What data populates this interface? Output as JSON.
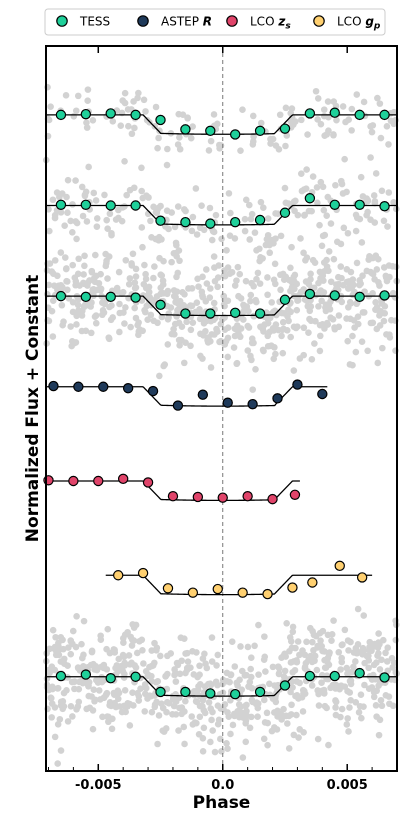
{
  "chart_data": {
    "type": "scatter",
    "title": "",
    "xlabel": "Phase",
    "ylabel": "Normalized Flux + Constant",
    "xlim": [
      -0.0071,
      0.007
    ],
    "ylim": [
      0,
      100
    ],
    "x_ticks": [
      -0.005,
      0.0,
      0.005
    ],
    "x_tick_labels": [
      "-0.005",
      "0.0",
      "0.005"
    ],
    "reference_line_x": 0.0,
    "legend": {
      "placement": "top, above plot",
      "entries": [
        {
          "label": "TESS",
          "color": "#1fd09a"
        },
        {
          "label": "ASTEP",
          "suffix": "R",
          "color": "#1f3a5a"
        },
        {
          "label": "LCO",
          "suffix": "z",
          "sub": "s",
          "color": "#e0446a"
        },
        {
          "label": "LCO",
          "suffix": "g",
          "sub": "p",
          "color": "#ffd070"
        }
      ]
    },
    "background_color": "#d2d2d2",
    "model_color": "#000000",
    "transit_params": {
      "t1": -0.0032,
      "t4": 0.0028,
      "ingress": 0.0007
    },
    "panels": [
      {
        "series": "TESS",
        "color": "#1fd09a",
        "baseline": 90.5,
        "depth": 2.5,
        "xrange": [
          -0.0071,
          0.007
        ],
        "background": {
          "n": 130,
          "scatter": 1.8
        },
        "binned": [
          [
            -0.0065,
            90.5
          ],
          [
            -0.0055,
            90.6
          ],
          [
            -0.0045,
            90.7
          ],
          [
            -0.0035,
            90.5
          ],
          [
            -0.0025,
            89.8
          ],
          [
            -0.0015,
            88.5
          ],
          [
            -0.0005,
            88.3
          ],
          [
            0.0005,
            87.8
          ],
          [
            0.0015,
            88.3
          ],
          [
            0.0025,
            88.6
          ],
          [
            0.0035,
            90.7
          ],
          [
            0.0045,
            90.8
          ],
          [
            0.0055,
            90.5
          ],
          [
            0.0065,
            90.5
          ]
        ]
      },
      {
        "series": "TESS",
        "color": "#1fd09a",
        "baseline": 78.0,
        "depth": 2.5,
        "xrange": [
          -0.0071,
          0.007
        ],
        "background": {
          "n": 200,
          "scatter": 2.3
        },
        "binned": [
          [
            -0.0065,
            78.1
          ],
          [
            -0.0055,
            78.1
          ],
          [
            -0.0045,
            78.0
          ],
          [
            -0.0035,
            78.0
          ],
          [
            -0.0025,
            75.9
          ],
          [
            -0.0015,
            75.7
          ],
          [
            -0.0005,
            75.5
          ],
          [
            0.0005,
            75.7
          ],
          [
            0.0015,
            76.0
          ],
          [
            0.0025,
            77.0
          ],
          [
            0.0035,
            79.0
          ],
          [
            0.0045,
            78.1
          ],
          [
            0.0055,
            78.1
          ],
          [
            0.0065,
            77.9
          ]
        ]
      },
      {
        "series": "TESS",
        "color": "#1fd09a",
        "baseline": 65.5,
        "depth": 2.5,
        "xrange": [
          -0.0071,
          0.007
        ],
        "background": {
          "n": 650,
          "scatter": 3.6
        },
        "binned": [
          [
            -0.0065,
            65.5
          ],
          [
            -0.0055,
            65.4
          ],
          [
            -0.0045,
            65.4
          ],
          [
            -0.0035,
            65.3
          ],
          [
            -0.0025,
            64.3
          ],
          [
            -0.0015,
            63.1
          ],
          [
            -0.0005,
            63.1
          ],
          [
            0.0005,
            63.2
          ],
          [
            0.0015,
            63.1
          ],
          [
            0.0025,
            65.0
          ],
          [
            0.0035,
            65.8
          ],
          [
            0.0045,
            65.6
          ],
          [
            0.0055,
            65.4
          ],
          [
            0.0065,
            65.6
          ]
        ]
      },
      {
        "series": "ASTEP R",
        "color": "#1f3a5a",
        "baseline": 53.0,
        "depth": 2.5,
        "xrange": [
          -0.0071,
          0.0042
        ],
        "background": null,
        "binned": [
          [
            -0.0068,
            53.1
          ],
          [
            -0.0058,
            53.0
          ],
          [
            -0.0048,
            53.0
          ],
          [
            -0.0038,
            52.8
          ],
          [
            -0.0028,
            52.4
          ],
          [
            -0.0018,
            50.4
          ],
          [
            -0.0008,
            51.9
          ],
          [
            0.0002,
            50.8
          ],
          [
            0.0012,
            50.6
          ],
          [
            0.0022,
            51.4
          ],
          [
            0.003,
            53.3
          ],
          [
            0.004,
            52.0
          ]
        ]
      },
      {
        "series": "LCO z_s",
        "color": "#e0446a",
        "baseline": 40.0,
        "depth": 2.5,
        "xrange": [
          -0.0071,
          0.0031
        ],
        "background": null,
        "binned": [
          [
            -0.007,
            40.1
          ],
          [
            -0.006,
            40.0
          ],
          [
            -0.005,
            40.0
          ],
          [
            -0.004,
            40.3
          ],
          [
            -0.003,
            39.8
          ],
          [
            -0.002,
            37.9
          ],
          [
            -0.001,
            37.8
          ],
          [
            0.0,
            37.7
          ],
          [
            0.001,
            37.9
          ],
          [
            0.002,
            37.5
          ],
          [
            0.0029,
            38.1
          ]
        ]
      },
      {
        "series": "LCO g_p",
        "color": "#ffd070",
        "baseline": 27.0,
        "depth": 2.5,
        "xrange": [
          -0.0047,
          0.006
        ],
        "background": null,
        "binned": [
          [
            -0.0042,
            27.0
          ],
          [
            -0.0032,
            27.3
          ],
          [
            -0.0022,
            25.2
          ],
          [
            -0.0012,
            24.6
          ],
          [
            -0.0002,
            25.1
          ],
          [
            0.0008,
            24.6
          ],
          [
            0.0018,
            24.4
          ],
          [
            0.0028,
            25.3
          ],
          [
            0.0036,
            26.0
          ],
          [
            0.0047,
            28.3
          ],
          [
            0.0056,
            26.7
          ]
        ]
      },
      {
        "series": "TESS",
        "color": "#1fd09a",
        "baseline": 13.0,
        "depth": 2.5,
        "xrange": [
          -0.0071,
          0.007
        ],
        "background": {
          "n": 700,
          "scatter": 3.6
        },
        "binned": [
          [
            -0.0065,
            13.1
          ],
          [
            -0.0055,
            13.3
          ],
          [
            -0.0045,
            12.8
          ],
          [
            -0.0035,
            13.0
          ],
          [
            -0.0025,
            10.9
          ],
          [
            -0.0015,
            10.9
          ],
          [
            -0.0005,
            10.7
          ],
          [
            0.0005,
            10.6
          ],
          [
            0.0015,
            10.9
          ],
          [
            0.0025,
            11.8
          ],
          [
            0.0035,
            13.1
          ],
          [
            0.0045,
            13.1
          ],
          [
            0.0055,
            13.5
          ],
          [
            0.0065,
            12.9
          ]
        ]
      }
    ]
  }
}
